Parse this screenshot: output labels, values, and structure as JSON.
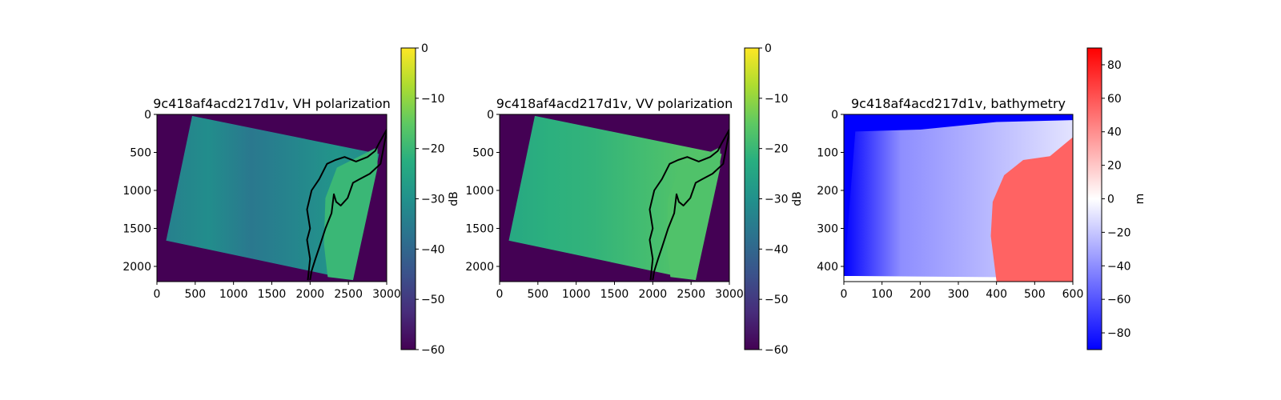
{
  "chart_data": [
    {
      "type": "heatmap",
      "title": "9c418af4acd217d1v, VH polarization",
      "xlim": [
        0,
        3000
      ],
      "ylim": [
        2200,
        0
      ],
      "xticks": [
        0,
        500,
        1000,
        1500,
        2000,
        2500,
        3000
      ],
      "yticks": [
        0,
        500,
        1000,
        1500,
        2000
      ],
      "swath_corners": [
        [
          460,
          20
        ],
        [
          2900,
          520
        ],
        [
          2560,
          2180
        ],
        [
          120,
          1660
        ]
      ],
      "background_value": -60,
      "sea_values": [
        -34,
        -31,
        -36,
        -33,
        -29,
        -32
      ],
      "land_value": -20,
      "colorbar": {
        "label": "dB",
        "colormap": "viridis",
        "range": [
          -60,
          0
        ],
        "ticks": [
          0,
          -10,
          -20,
          -30,
          -40,
          -50,
          -60
        ]
      }
    },
    {
      "type": "heatmap",
      "title": "9c418af4acd217d1v, VV polarization",
      "xlim": [
        0,
        3000
      ],
      "ylim": [
        2200,
        0
      ],
      "xticks": [
        0,
        500,
        1000,
        1500,
        2000,
        2500,
        3000
      ],
      "yticks": [
        0,
        500,
        1000,
        1500,
        2000
      ],
      "swath_corners": [
        [
          460,
          20
        ],
        [
          2900,
          520
        ],
        [
          2560,
          2180
        ],
        [
          120,
          1660
        ]
      ],
      "background_value": -60,
      "sea_values": [
        -24,
        -22,
        -21,
        -19,
        -17,
        -16
      ],
      "land_value": -17,
      "colorbar": {
        "label": "dB",
        "colormap": "viridis",
        "range": [
          -60,
          0
        ],
        "ticks": [
          0,
          -10,
          -20,
          -30,
          -40,
          -50,
          -60
        ]
      }
    },
    {
      "type": "heatmap",
      "title": "9c418af4acd217d1v, bathymetry",
      "xlim": [
        0,
        600
      ],
      "ylim": [
        440,
        0
      ],
      "xticks": [
        0,
        100,
        200,
        300,
        400,
        500,
        600
      ],
      "yticks": [
        0,
        100,
        200,
        300,
        400
      ],
      "deep_value": -90,
      "shelf_values": [
        -40,
        -30,
        -20,
        -10
      ],
      "land_value": 55,
      "colorbar": {
        "label": "m",
        "colormap": "bwr",
        "range": [
          -90,
          90
        ],
        "ticks": [
          80,
          60,
          40,
          20,
          0,
          -20,
          -40,
          -60,
          -80
        ]
      }
    }
  ]
}
